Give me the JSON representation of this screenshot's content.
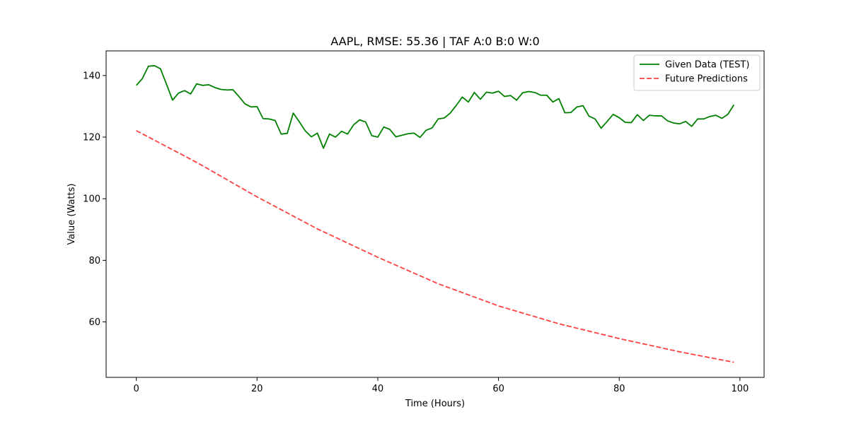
{
  "chart_data": {
    "type": "line",
    "title": "AAPL, RMSE: 55.36 | TAF A:0 B:0 W:0",
    "xlabel": "Time (Hours)",
    "ylabel": "Value (Watts)",
    "xlim": [
      -5,
      104
    ],
    "ylim": [
      42,
      148
    ],
    "xticks": [
      0,
      20,
      40,
      60,
      80,
      100
    ],
    "yticks": [
      60,
      80,
      100,
      120,
      140
    ],
    "grid": false,
    "legend_position": "top-right",
    "series": [
      {
        "name": "Given Data (TEST)",
        "color": "#008000",
        "style": "solid",
        "x": [
          0,
          1,
          2,
          3,
          4,
          5,
          6,
          7,
          8,
          9,
          10,
          11,
          12,
          13,
          14,
          15,
          16,
          17,
          18,
          19,
          20,
          21,
          22,
          23,
          24,
          25,
          26,
          27,
          28,
          29,
          30,
          31,
          32,
          33,
          34,
          35,
          36,
          37,
          38,
          39,
          40,
          41,
          42,
          43,
          44,
          45,
          46,
          47,
          48,
          49,
          50,
          51,
          52,
          53,
          54,
          55,
          56,
          57,
          58,
          59,
          60,
          61,
          62,
          63,
          64,
          65,
          66,
          67,
          68,
          69,
          70,
          71,
          72,
          73,
          74,
          75,
          76,
          77,
          78,
          79,
          80,
          81,
          82,
          83,
          84,
          85,
          86,
          87,
          88,
          89,
          90,
          91,
          92,
          93,
          94,
          95,
          96,
          97,
          98,
          99
        ],
        "values": [
          136.8,
          139.0,
          143.0,
          143.2,
          142.2,
          137.2,
          132.0,
          134.3,
          135.1,
          134.0,
          137.3,
          136.8,
          137.0,
          136.1,
          135.5,
          135.3,
          135.4,
          133.2,
          130.8,
          129.8,
          129.9,
          126.0,
          125.9,
          125.4,
          121.0,
          121.2,
          127.8,
          125.0,
          122.0,
          120.1,
          121.3,
          116.4,
          121.0,
          120.0,
          121.9,
          121.0,
          124.0,
          125.6,
          124.9,
          120.5,
          120.0,
          123.3,
          122.5,
          120.1,
          120.6,
          121.1,
          121.3,
          119.9,
          122.2,
          123.0,
          125.9,
          126.2,
          127.8,
          130.3,
          133.0,
          131.4,
          134.5,
          132.3,
          134.6,
          134.3,
          134.9,
          133.2,
          133.5,
          132.0,
          134.4,
          134.8,
          134.5,
          133.6,
          133.6,
          131.4,
          132.5,
          127.9,
          128.0,
          129.8,
          130.2,
          126.8,
          125.9,
          122.9,
          125.1,
          127.4,
          126.3,
          124.8,
          124.7,
          127.3,
          125.4,
          127.1,
          126.9,
          126.9,
          125.3,
          124.6,
          124.3,
          125.1,
          123.5,
          125.9,
          125.9,
          126.7,
          127.1,
          126.1,
          127.4,
          130.5
        ]
      },
      {
        "name": "Future Predictions",
        "color": "#ff0000",
        "style": "dashed",
        "x": [
          0,
          10,
          20,
          30,
          40,
          50,
          60,
          70,
          80,
          90,
          99
        ],
        "values": [
          122.1,
          111.8,
          100.6,
          90.2,
          81.0,
          72.4,
          65.2,
          59.4,
          54.6,
          50.3,
          46.9
        ]
      }
    ]
  }
}
